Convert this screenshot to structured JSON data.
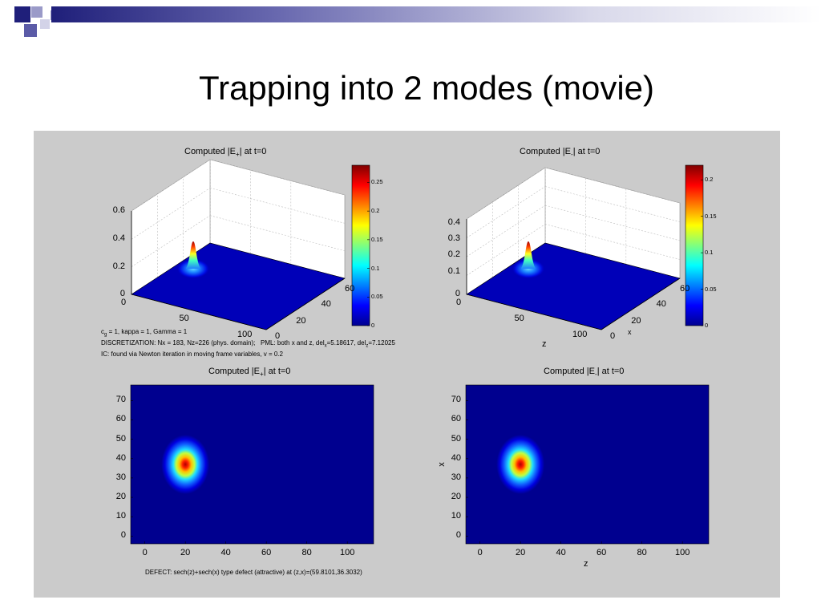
{
  "slide": {
    "title": "Trapping into 2 modes (movie)"
  },
  "decoration": {
    "square_colors": [
      "#1f1f7a",
      "#5b5ba7",
      "#9a9ac8",
      "#d3d3e8"
    ],
    "bar_gradient": [
      "#1f1f7a",
      "#ffffff"
    ]
  },
  "colormap": "jet",
  "panels": {
    "surface_left": {
      "title_prefix": "Computed |E",
      "title_sub": "+",
      "title_suffix": "| at t=0",
      "zticks": [
        "0.6",
        "0.4",
        "0.2",
        "0"
      ],
      "zaxis_ticks": [
        "0",
        "50",
        "100"
      ],
      "xaxis_ticks": [
        "0",
        "20",
        "40",
        "60"
      ],
      "colorbar": {
        "max": 0.28,
        "ticks": [
          "0.25",
          "0.2",
          "0.15",
          "0.1",
          "0.05",
          "0"
        ]
      }
    },
    "surface_right": {
      "title_prefix": "Computed |E",
      "title_sub": "-",
      "title_suffix": "| at t=0",
      "zticks": [
        "0.4",
        "0.3",
        "0.2",
        "0.1",
        "0"
      ],
      "zaxis_ticks": [
        "0",
        "50",
        "100"
      ],
      "xaxis_ticks": [
        "0",
        "20",
        "40",
        "60"
      ],
      "zlabel": "z",
      "xlabel": "x",
      "colorbar": {
        "max": 0.22,
        "ticks": [
          "0.2",
          "0.15",
          "0.1",
          "0.05",
          "0"
        ]
      }
    },
    "heat_left": {
      "title_prefix": "Computed |E",
      "title_sub": "+",
      "title_suffix": "| at t=0",
      "yticks": [
        "70",
        "60",
        "50",
        "40",
        "30",
        "20",
        "10",
        "0"
      ],
      "xticks": [
        "0",
        "20",
        "40",
        "60",
        "80",
        "100"
      ]
    },
    "heat_right": {
      "title_prefix": "Computed |E",
      "title_sub": "-",
      "title_suffix": "| at t=0",
      "yticks": [
        "70",
        "60",
        "50",
        "40",
        "30",
        "20",
        "10",
        "0"
      ],
      "xticks": [
        "0",
        "20",
        "40",
        "60",
        "80",
        "100"
      ],
      "xlabel": "z",
      "ylabel": "x"
    }
  },
  "parameters": {
    "line1_a": "c",
    "line1_sub": "g",
    "line1_b": " = 1, kappa = 1, Gamma = 1",
    "line2_a": "DISCRETIZATION: Nx = 183, Nz=226 (phys. domain);",
    "line2_b": "PML: both x and z, del",
    "line2_sub1": "x",
    "line2_c": "=5.18617, del",
    "line2_sub2": "z",
    "line2_d": "=7.12025",
    "line3": "IC: found via Newton iteration in moving frame variables, v = 0.2"
  },
  "defect_note": "DEFECT: sech(z)+sech(x) type defect (attractive) at (z,x)=(59.8101,36.3032)",
  "chart_data": [
    {
      "type": "surface",
      "title": "Computed |E+| at t=0",
      "z_range": [
        0,
        0.6
      ],
      "zaxis_range": [
        0,
        110
      ],
      "xaxis_range": [
        0,
        70
      ],
      "peak": {
        "z": 20,
        "x": 37,
        "value": 0.28
      },
      "colorbar_range": [
        0,
        0.28
      ]
    },
    {
      "type": "surface",
      "title": "Computed |E-| at t=0",
      "z_range": [
        0,
        0.4
      ],
      "zaxis_range": [
        0,
        110
      ],
      "xaxis_range": [
        0,
        70
      ],
      "xlabel": "x",
      "zlabel": "z",
      "peak": {
        "z": 20,
        "x": 37,
        "value": 0.22
      },
      "colorbar_range": [
        0,
        0.22
      ]
    },
    {
      "type": "heatmap",
      "title": "Computed |E+| at t=0",
      "x_range": [
        -7,
        113
      ],
      "y_range": [
        -4,
        78
      ],
      "peak": {
        "z": 20,
        "x": 37
      }
    },
    {
      "type": "heatmap",
      "title": "Computed |E-| at t=0",
      "xlabel": "z",
      "ylabel": "x",
      "x_range": [
        -7,
        113
      ],
      "y_range": [
        -4,
        78
      ],
      "peak": {
        "z": 20,
        "x": 37
      }
    }
  ]
}
